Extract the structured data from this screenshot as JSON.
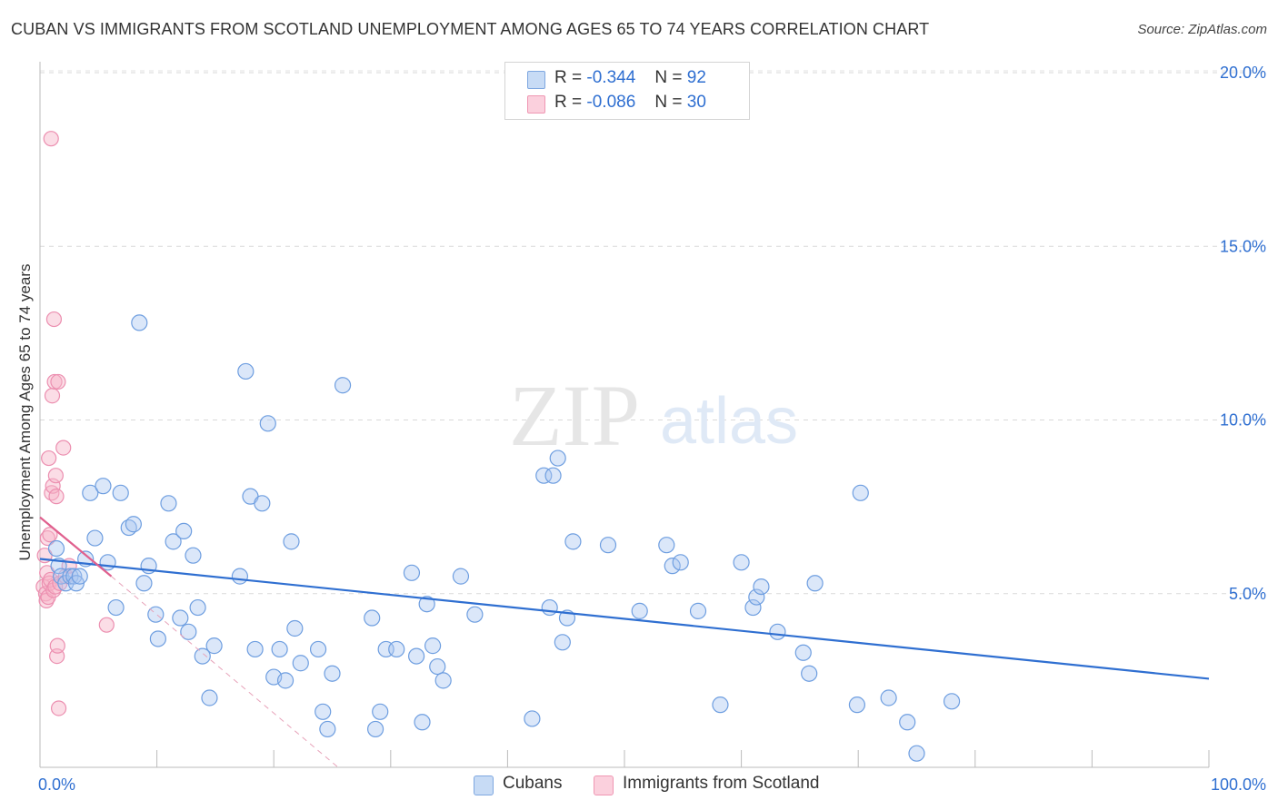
{
  "title": "CUBAN VS IMMIGRANTS FROM SCOTLAND UNEMPLOYMENT AMONG AGES 65 TO 74 YEARS CORRELATION CHART",
  "source": "Source: ZipAtlas.com",
  "watermark": {
    "zip": "ZIP",
    "atlas": "atlas"
  },
  "legend_top": [
    {
      "r_label": "R =",
      "r_value": "-0.344",
      "n_label": "N =",
      "n_value": "92",
      "color": "#a9c6f0"
    },
    {
      "r_label": "R =",
      "r_value": "-0.086",
      "n_label": "N =",
      "n_value": "30",
      "color": "#f6b4c8"
    }
  ],
  "legend_bottom": [
    {
      "label": "Cubans",
      "color": "#a9c6f0"
    },
    {
      "label": "Immigrants from Scotland",
      "color": "#f6b4c8"
    }
  ],
  "colors": {
    "blue": "#2f6fd1",
    "blue_fill": "#a9c6f0",
    "pink": "#e0608e",
    "pink_fill": "#f6b4c8",
    "grid": "#d9d9d9"
  },
  "chart_data": {
    "type": "scatter",
    "title": "CUBAN VS IMMIGRANTS FROM SCOTLAND UNEMPLOYMENT AMONG AGES 65 TO 74 YEARS CORRELATION CHART",
    "xlabel": "",
    "ylabel": "Unemployment Among Ages 65 to 74 years",
    "xlim": [
      0,
      100
    ],
    "ylim": [
      0,
      20
    ],
    "x_tick_labels": [
      "0.0%",
      "100.0%"
    ],
    "y_ticks": [
      5,
      10,
      15,
      20
    ],
    "y_tick_labels": [
      "5.0%",
      "10.0%",
      "15.0%",
      "20.0%"
    ],
    "grid": "horizontal dashed",
    "legend_position": "top-center",
    "series": [
      {
        "name": "Cubans",
        "R": -0.344,
        "N": 92,
        "trend": {
          "x": [
            0,
            100
          ],
          "y": [
            6.0,
            2.55
          ]
        },
        "points": [
          [
            1.4,
            6.3
          ],
          [
            1.6,
            5.8
          ],
          [
            1.8,
            5.5
          ],
          [
            2.2,
            5.3
          ],
          [
            2.6,
            5.5
          ],
          [
            2.9,
            5.5
          ],
          [
            3.1,
            5.3
          ],
          [
            3.4,
            5.5
          ],
          [
            3.9,
            6.0
          ],
          [
            4.3,
            7.9
          ],
          [
            4.7,
            6.6
          ],
          [
            5.4,
            8.1
          ],
          [
            5.8,
            5.9
          ],
          [
            6.5,
            4.6
          ],
          [
            6.9,
            7.9
          ],
          [
            7.6,
            6.9
          ],
          [
            8.0,
            7.0
          ],
          [
            8.5,
            12.8
          ],
          [
            8.9,
            5.3
          ],
          [
            9.3,
            5.8
          ],
          [
            9.9,
            4.4
          ],
          [
            10.1,
            3.7
          ],
          [
            11.0,
            7.6
          ],
          [
            11.4,
            6.5
          ],
          [
            12.0,
            4.3
          ],
          [
            12.3,
            6.8
          ],
          [
            12.7,
            3.9
          ],
          [
            13.1,
            6.1
          ],
          [
            13.5,
            4.6
          ],
          [
            13.9,
            3.2
          ],
          [
            14.5,
            2.0
          ],
          [
            14.9,
            3.5
          ],
          [
            17.1,
            5.5
          ],
          [
            17.6,
            11.4
          ],
          [
            18.0,
            7.8
          ],
          [
            18.4,
            3.4
          ],
          [
            19.0,
            7.6
          ],
          [
            19.5,
            9.9
          ],
          [
            20.0,
            2.6
          ],
          [
            20.5,
            3.4
          ],
          [
            21.0,
            2.5
          ],
          [
            21.5,
            6.5
          ],
          [
            21.8,
            4.0
          ],
          [
            22.3,
            3.0
          ],
          [
            23.8,
            3.4
          ],
          [
            24.2,
            1.6
          ],
          [
            24.6,
            1.1
          ],
          [
            25.0,
            2.7
          ],
          [
            25.9,
            11.0
          ],
          [
            28.4,
            4.3
          ],
          [
            28.7,
            1.1
          ],
          [
            29.1,
            1.6
          ],
          [
            29.6,
            3.4
          ],
          [
            30.5,
            3.4
          ],
          [
            31.8,
            5.6
          ],
          [
            32.2,
            3.2
          ],
          [
            32.7,
            1.3
          ],
          [
            33.1,
            4.7
          ],
          [
            33.6,
            3.5
          ],
          [
            34.0,
            2.9
          ],
          [
            34.5,
            2.5
          ],
          [
            36.0,
            5.5
          ],
          [
            37.2,
            4.4
          ],
          [
            42.1,
            1.4
          ],
          [
            43.1,
            8.4
          ],
          [
            43.6,
            4.6
          ],
          [
            43.9,
            8.4
          ],
          [
            44.3,
            8.9
          ],
          [
            44.7,
            3.6
          ],
          [
            45.1,
            4.3
          ],
          [
            45.6,
            6.5
          ],
          [
            48.6,
            6.4
          ],
          [
            51.3,
            4.5
          ],
          [
            53.6,
            6.4
          ],
          [
            54.1,
            5.8
          ],
          [
            54.8,
            5.9
          ],
          [
            56.3,
            4.5
          ],
          [
            58.2,
            1.8
          ],
          [
            60.0,
            5.9
          ],
          [
            61.0,
            4.6
          ],
          [
            61.3,
            4.9
          ],
          [
            61.7,
            5.2
          ],
          [
            63.1,
            3.9
          ],
          [
            65.3,
            3.3
          ],
          [
            65.8,
            2.7
          ],
          [
            66.3,
            5.3
          ],
          [
            69.9,
            1.8
          ],
          [
            70.2,
            7.9
          ],
          [
            72.6,
            2.0
          ],
          [
            74.2,
            1.3
          ],
          [
            75.0,
            0.4
          ],
          [
            78.0,
            1.9
          ]
        ]
      },
      {
        "name": "Immigrants from Scotland",
        "R": -0.086,
        "N": 30,
        "trend": {
          "x": [
            0,
            6.1
          ],
          "y": [
            7.2,
            5.5
          ]
        },
        "trend_extended": {
          "x": [
            6.1,
            25.5
          ],
          "y": [
            5.5,
            0.0
          ]
        },
        "points": [
          [
            0.3,
            5.2
          ],
          [
            0.4,
            6.1
          ],
          [
            0.5,
            5.0
          ],
          [
            0.55,
            4.8
          ],
          [
            0.6,
            5.6
          ],
          [
            0.65,
            6.6
          ],
          [
            0.7,
            4.9
          ],
          [
            0.75,
            8.9
          ],
          [
            0.8,
            5.3
          ],
          [
            0.85,
            6.7
          ],
          [
            0.9,
            5.4
          ],
          [
            0.95,
            18.1
          ],
          [
            1.0,
            7.9
          ],
          [
            1.05,
            10.7
          ],
          [
            1.1,
            8.1
          ],
          [
            1.15,
            5.1
          ],
          [
            1.2,
            12.9
          ],
          [
            1.25,
            11.1
          ],
          [
            1.3,
            5.2
          ],
          [
            1.35,
            8.4
          ],
          [
            1.4,
            7.8
          ],
          [
            1.45,
            3.2
          ],
          [
            1.5,
            3.5
          ],
          [
            1.55,
            11.1
          ],
          [
            1.6,
            1.7
          ],
          [
            1.7,
            5.3
          ],
          [
            2.0,
            9.2
          ],
          [
            2.2,
            5.5
          ],
          [
            2.5,
            5.8
          ],
          [
            5.7,
            4.1
          ]
        ]
      }
    ]
  }
}
